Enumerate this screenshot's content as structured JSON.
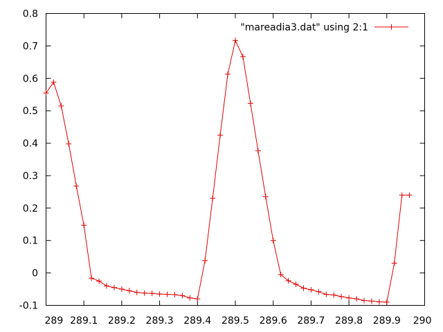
{
  "chart_data": {
    "type": "line",
    "title": "",
    "xlabel": "",
    "ylabel": "",
    "xlim": [
      289,
      290
    ],
    "ylim": [
      -0.1,
      0.8
    ],
    "xticks": [
      "289",
      "289.1",
      "289.2",
      "289.3",
      "289.4",
      "289.5",
      "289.6",
      "289.7",
      "289.8",
      "289.9",
      "290"
    ],
    "yticks": [
      "-0.1",
      "0",
      "0.1",
      "0.2",
      "0.3",
      "0.4",
      "0.5",
      "0.6",
      "0.7",
      "0.8"
    ],
    "grid": false,
    "legend_position": "top-right",
    "series": [
      {
        "name": "\"mareadia3.dat\" using 2:1",
        "color": "#e00000",
        "marker": "plus",
        "x": [
          289.0,
          289.02,
          289.04,
          289.06,
          289.08,
          289.1,
          289.12,
          289.14,
          289.16,
          289.18,
          289.2,
          289.22,
          289.24,
          289.26,
          289.28,
          289.3,
          289.32,
          289.34,
          289.36,
          289.38,
          289.4,
          289.42,
          289.44,
          289.46,
          289.48,
          289.5,
          289.52,
          289.54,
          289.56,
          289.58,
          289.6,
          289.62,
          289.64,
          289.66,
          289.68,
          289.7,
          289.72,
          289.74,
          289.76,
          289.78,
          289.8,
          289.82,
          289.84,
          289.86,
          289.88,
          289.9,
          289.92,
          289.94,
          289.96
        ],
        "y": [
          0.555,
          0.588,
          0.515,
          0.398,
          0.268,
          0.147,
          -0.016,
          -0.025,
          -0.04,
          -0.045,
          -0.05,
          -0.055,
          -0.06,
          -0.062,
          -0.063,
          -0.065,
          -0.066,
          -0.067,
          -0.07,
          -0.077,
          -0.08,
          0.038,
          0.23,
          0.425,
          0.613,
          0.717,
          0.667,
          0.523,
          0.377,
          0.235,
          0.1,
          -0.005,
          -0.024,
          -0.035,
          -0.047,
          -0.052,
          -0.058,
          -0.066,
          -0.068,
          -0.073,
          -0.077,
          -0.08,
          -0.085,
          -0.087,
          -0.089,
          -0.09,
          0.03,
          0.24,
          0.24
        ]
      }
    ]
  }
}
